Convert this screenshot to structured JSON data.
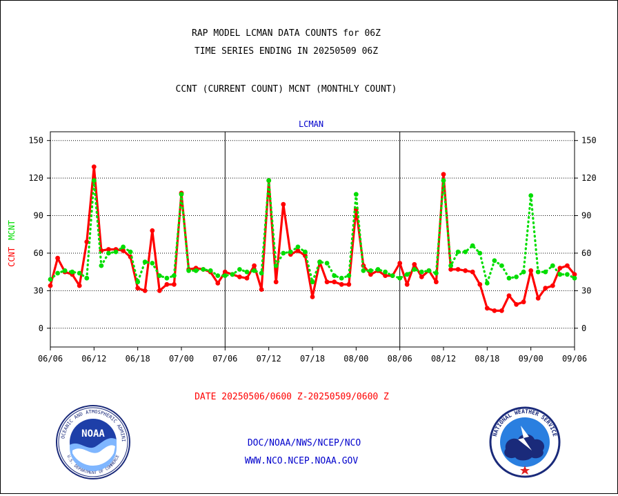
{
  "header": {
    "title_line1": "RAP MODEL LCMAN DATA COUNTS for 06Z",
    "title_line2": "TIME SERIES ENDING IN 20250509 06Z",
    "subtitle": "CCNT (CURRENT COUNT) MCNT (MONTHLY COUNT)"
  },
  "footer": {
    "date_range": "DATE 20250506/0600 Z-20250509/0600 Z",
    "org_line": "DOC/NOAA/NWS/NCEP/NCO",
    "url_line": "WWW.NCO.NCEP.NOAA.GOV"
  },
  "logos": {
    "noaa_text": "NOAA",
    "noaa_ring": "NATIONAL OCEANIC AND ATMOSPHERIC ADMINISTRATION",
    "noaa_ring_bottom": "U.S. DEPARTMENT OF COMMERCE",
    "nws_ring": "NATIONAL WEATHER SERVICE"
  },
  "colors": {
    "ccnt": "#ff0000",
    "mcnt": "#00dd00",
    "panel_title": "#0000cc",
    "footer_red": "#ff0000",
    "footer_blue": "#0000cc"
  },
  "chart_data": {
    "type": "line",
    "title": "LCMAN",
    "ylabel_left": [
      "CCNT",
      "MCNT"
    ],
    "ylim": [
      -15,
      157
    ],
    "yticks": [
      0,
      30,
      60,
      90,
      120,
      150
    ],
    "grid": true,
    "x_tick_labels": [
      "06/06",
      "06/12",
      "06/18",
      "07/00",
      "07/06",
      "07/12",
      "07/18",
      "08/00",
      "08/06",
      "08/12",
      "08/18",
      "09/00",
      "09/06"
    ],
    "x_points_per_tick": 6,
    "series": [
      {
        "name": "CCNT",
        "style": "solid",
        "values": [
          34,
          56,
          45,
          43,
          34,
          69,
          129,
          62,
          63,
          63,
          62,
          57,
          32,
          30,
          78,
          30,
          35,
          35,
          108,
          47,
          48,
          47,
          45,
          36,
          45,
          43,
          41,
          40,
          50,
          31,
          118,
          37,
          99,
          59,
          62,
          58,
          25,
          53,
          37,
          37,
          35,
          35,
          95,
          50,
          43,
          46,
          42,
          42,
          52,
          35,
          51,
          41,
          46,
          37,
          123,
          47,
          47,
          46,
          45,
          35,
          16,
          14,
          14,
          26,
          19,
          21,
          46,
          24,
          32,
          34,
          48,
          50,
          43
        ]
      },
      {
        "name": "MCNT",
        "style": "dotted",
        "values": [
          39,
          44,
          46,
          45,
          44,
          40,
          118,
          50,
          60,
          61,
          65,
          61,
          37,
          53,
          52,
          42,
          40,
          42,
          107,
          46,
          46,
          47,
          46,
          42,
          42,
          43,
          47,
          45,
          46,
          44,
          118,
          50,
          60,
          61,
          65,
          61,
          37,
          53,
          52,
          42,
          40,
          42,
          107,
          46,
          46,
          47,
          45,
          42,
          40,
          43,
          47,
          45,
          46,
          44,
          118,
          50,
          61,
          61,
          66,
          60,
          36,
          54,
          50,
          40,
          41,
          45,
          106,
          45,
          45,
          50,
          43,
          43,
          40
        ]
      }
    ]
  }
}
